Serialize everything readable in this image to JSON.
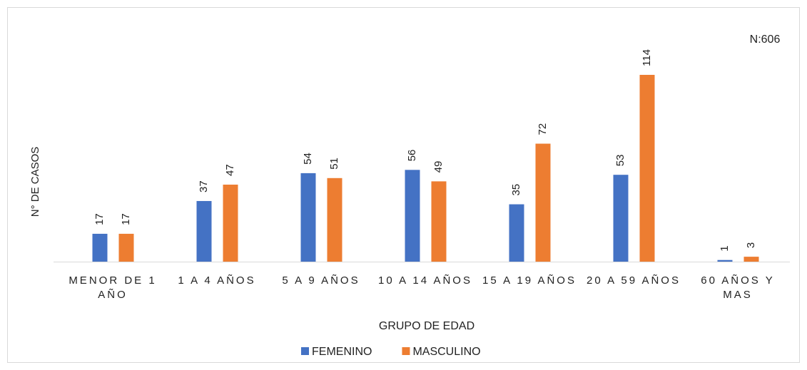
{
  "chart_data": {
    "type": "bar",
    "annotation": "N:606",
    "y_label": "N° DE CASOS",
    "x_label": "GRUPO DE EDAD",
    "categories": [
      "MENOR DE 1 AÑO",
      "1 A 4 AÑOS",
      "5 A 9 AÑOS",
      "10 A 14 AÑOS",
      "15 A 19 AÑOS",
      "20 A 59 AÑOS",
      "60 AÑOS Y MAS"
    ],
    "series": [
      {
        "name": "FEMENINO",
        "color": "#4472c4",
        "values": [
          17,
          37,
          54,
          56,
          35,
          53,
          1
        ]
      },
      {
        "name": "MASCULINO",
        "color": "#ed7d31",
        "values": [
          17,
          47,
          51,
          49,
          72,
          114,
          3
        ]
      }
    ],
    "legend": "bottom"
  }
}
